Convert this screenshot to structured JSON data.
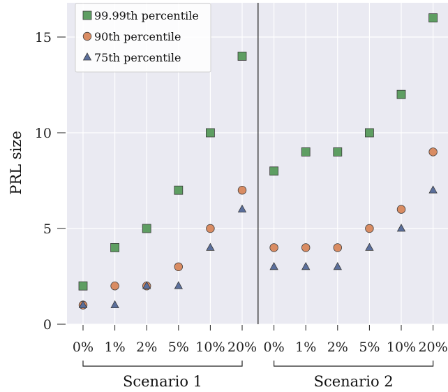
{
  "chart_data": {
    "type": "scatter",
    "ylabel": "PRL size",
    "ylim": [
      0,
      16.8
    ],
    "yticks": [
      0,
      5,
      10,
      15
    ],
    "xlabels": [
      "0%",
      "1%",
      "2%",
      "5%",
      "10%",
      "20%",
      "0%",
      "1%",
      "2%",
      "5%",
      "10%",
      "20%"
    ],
    "groups": [
      {
        "label": "Scenario 1",
        "from": 0,
        "to": 5
      },
      {
        "label": "Scenario 2",
        "from": 6,
        "to": 11
      }
    ],
    "grid": true,
    "legend_position": "top-left",
    "series": [
      {
        "name": "99.99th percentile",
        "marker": "square",
        "color": "#5e9e62",
        "values": [
          2,
          4,
          5,
          7,
          10,
          14,
          8,
          9,
          9,
          10,
          12,
          16
        ]
      },
      {
        "name": "90th percentile",
        "marker": "circle",
        "color": "#d98c63",
        "values": [
          1,
          2,
          2,
          3,
          5,
          7,
          4,
          4,
          4,
          5,
          6,
          9
        ]
      },
      {
        "name": "75th percentile",
        "marker": "triangle",
        "color": "#5b6f9c",
        "values": [
          1,
          1,
          2,
          2,
          4,
          6,
          3,
          3,
          3,
          4,
          5,
          7
        ]
      }
    ]
  }
}
